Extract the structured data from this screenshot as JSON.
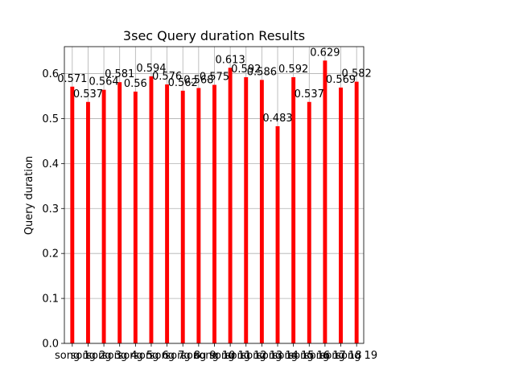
{
  "chart_data": {
    "type": "bar",
    "title": "3sec Query duration Results",
    "xlabel": "",
    "ylabel": "Query duration",
    "categories": [
      "song 1",
      "song 2",
      "song 3",
      "song 4",
      "song 5",
      "song 6",
      "song 7",
      "song 8",
      "song 9",
      "song 10",
      "song 11",
      "song 12",
      "song 13",
      "song 14",
      "song 15",
      "song 16",
      "song 17",
      "song 18",
      "song 19"
    ],
    "values": [
      0.571,
      0.537,
      0.564,
      0.581,
      0.56,
      0.594,
      0.576,
      0.562,
      0.568,
      0.575,
      0.613,
      0.592,
      0.586,
      0.483,
      0.592,
      0.537,
      0.629,
      0.569,
      0.582
    ],
    "data_labels": [
      "0.571",
      "0.537",
      "0.564",
      "0.581",
      "0.56",
      "0.594",
      "0.576",
      "0.562",
      "0.568",
      "0.575",
      "0.613",
      "0.592",
      "0.586",
      "0.483",
      "0.592",
      "0.537",
      "0.629",
      "0.569",
      "0.582"
    ],
    "yticks": [
      "0.0",
      "0.1",
      "0.2",
      "0.3",
      "0.4",
      "0.5",
      "0.6"
    ],
    "ylim": [
      0,
      0.66
    ],
    "grid": true,
    "bar_color": "#ff0000",
    "grid_color": "#b0b0b0"
  }
}
